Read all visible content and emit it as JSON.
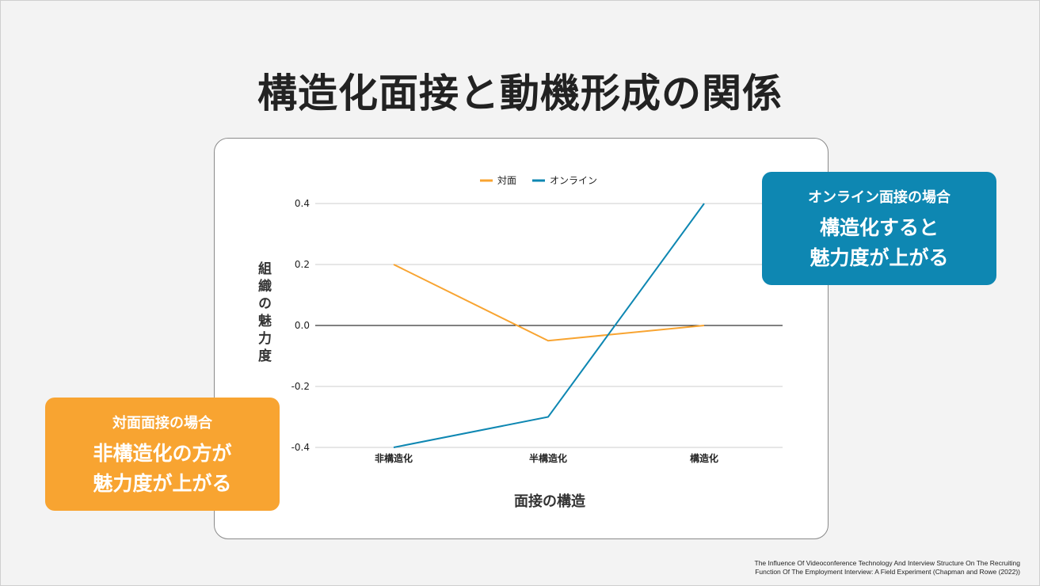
{
  "title": "構造化面接と動機形成の関係",
  "callouts": {
    "online": {
      "heading": "オンライン面接の場合",
      "body_line1": "構造化すると",
      "body_line2": "魅力度が上がる"
    },
    "inperson": {
      "heading": "対面面接の場合",
      "body_line1": "非構造化の方が",
      "body_line2": "魅力度が上がる"
    }
  },
  "citation": {
    "line1": "The Influence Of Videoconference Technology And Interview Structure On The Recruiting",
    "line2": "Function Of The Employment Interview: A Field Experiment (Chapman and Rowe (2022))"
  },
  "colors": {
    "inperson": "#f8a431",
    "online": "#0e87b2",
    "grid": "#cccccc",
    "zero": "#000000"
  },
  "chart_data": {
    "type": "line",
    "categories": [
      "非構造化",
      "半構造化",
      "構造化"
    ],
    "series": [
      {
        "name": "対面",
        "values": [
          0.2,
          -0.05,
          0.0
        ]
      },
      {
        "name": "オンライン",
        "values": [
          -0.4,
          -0.3,
          0.4
        ]
      }
    ],
    "xlabel": "面接の構造",
    "ylabel": "組織の魅力度",
    "ylim": [
      -0.4,
      0.4
    ],
    "yticks": [
      "-0.4",
      "-0.2",
      "0.0",
      "0.2",
      "0.4"
    ],
    "legend_position": "top",
    "grid": true
  }
}
